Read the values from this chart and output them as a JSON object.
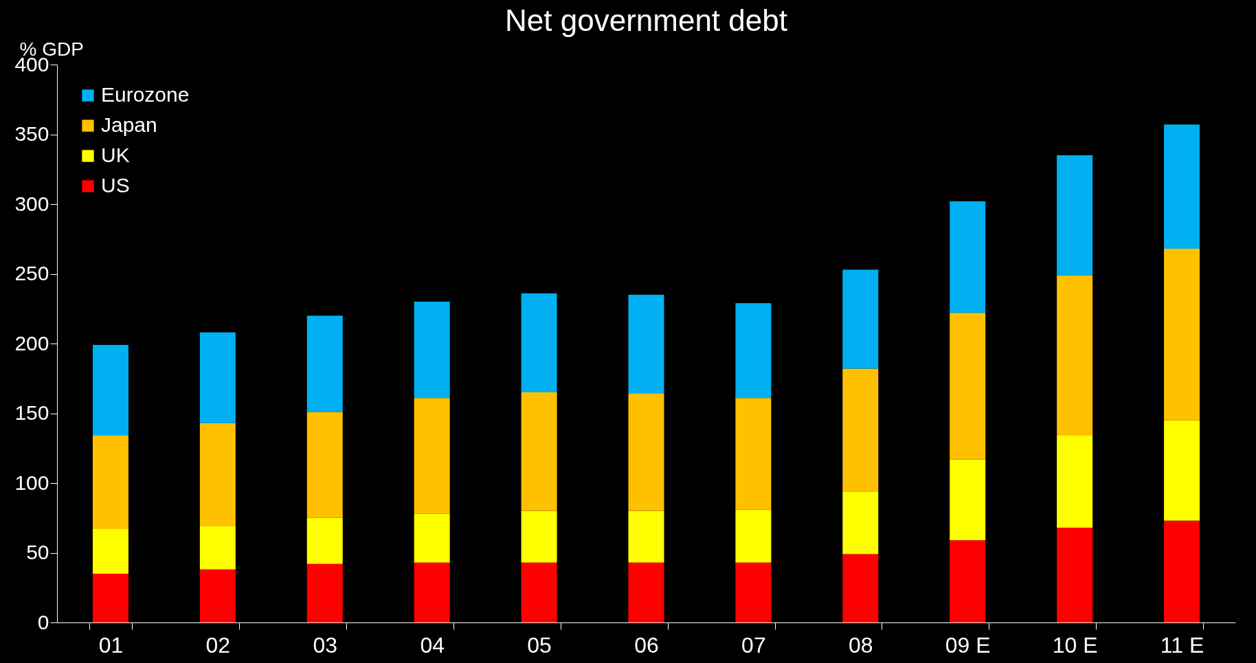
{
  "chart_data": {
    "type": "bar",
    "title": "Net government debt",
    "ylabel": "% GDP",
    "stacked": true,
    "categories": [
      "01",
      "02",
      "03",
      "04",
      "05",
      "06",
      "07",
      "08",
      "09 E",
      "10 E",
      "11 E"
    ],
    "series": [
      {
        "name": "US",
        "color": "#ff0000",
        "values": [
          35,
          38,
          42,
          43,
          43,
          43,
          43,
          49,
          59,
          68,
          73
        ]
      },
      {
        "name": "UK",
        "color": "#ffff00",
        "values": [
          32,
          31,
          33,
          35,
          37,
          37,
          38,
          45,
          58,
          66,
          72
        ]
      },
      {
        "name": "Japan",
        "color": "#ffc000",
        "values": [
          67,
          74,
          76,
          83,
          85,
          84,
          80,
          88,
          105,
          115,
          123
        ]
      },
      {
        "name": "Eurozone",
        "color": "#00b0f0",
        "values": [
          65,
          65,
          69,
          69,
          71,
          71,
          68,
          71,
          80,
          86,
          89
        ]
      }
    ],
    "ylim": [
      0,
      400
    ],
    "yticks": [
      0,
      50,
      100,
      150,
      200,
      250,
      300,
      350,
      400
    ],
    "grid": false,
    "legend": "top left"
  }
}
